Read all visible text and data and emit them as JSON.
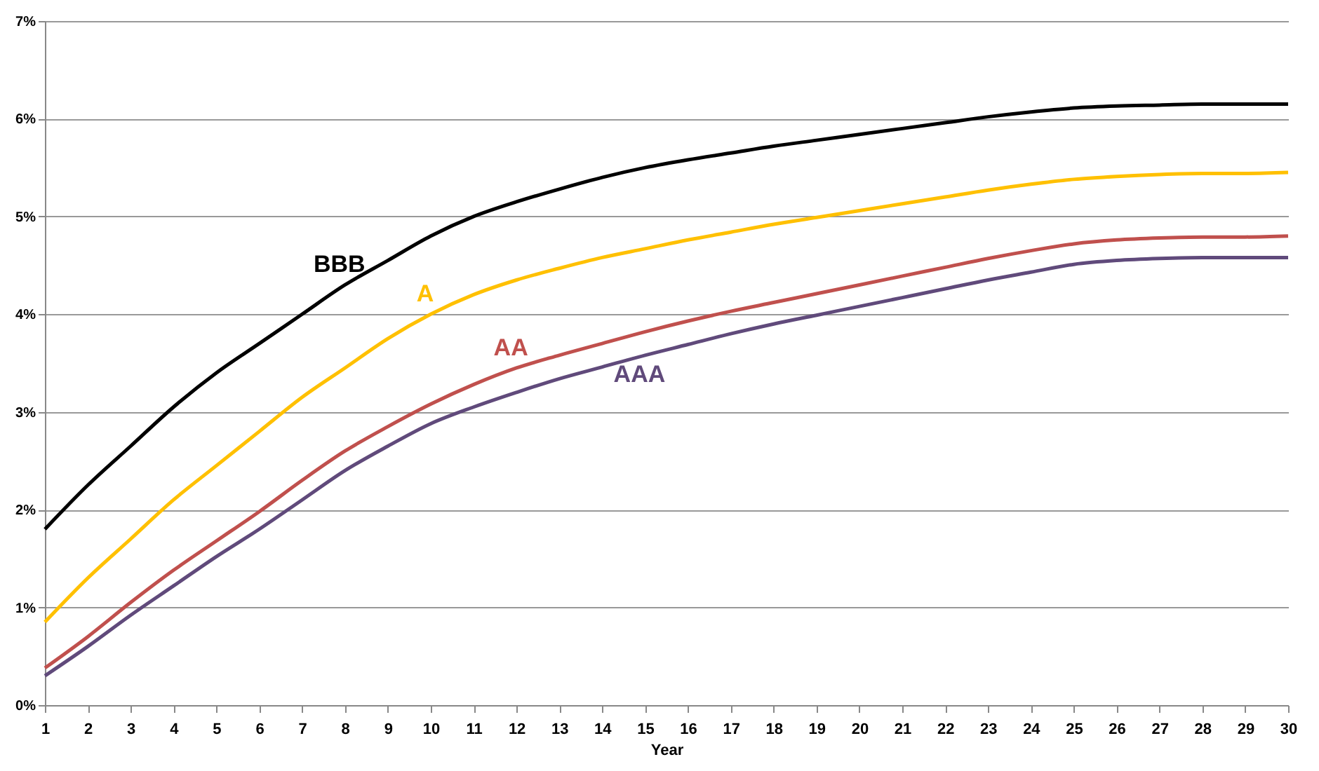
{
  "chart_data": {
    "type": "line",
    "xlabel": "Year",
    "x": [
      1,
      2,
      3,
      4,
      5,
      6,
      7,
      8,
      9,
      10,
      11,
      12,
      13,
      14,
      15,
      16,
      17,
      18,
      19,
      20,
      21,
      22,
      23,
      24,
      25,
      26,
      27,
      28,
      29,
      30
    ],
    "xlim": [
      1,
      30
    ],
    "xticks": [
      1,
      2,
      3,
      4,
      5,
      6,
      7,
      8,
      9,
      10,
      11,
      12,
      13,
      14,
      15,
      16,
      17,
      18,
      19,
      20,
      21,
      22,
      23,
      24,
      25,
      26,
      27,
      28,
      29,
      30
    ],
    "ylim": [
      0,
      7
    ],
    "yticks": [
      {
        "value": 0,
        "label": "0%"
      },
      {
        "value": 1,
        "label": "1%"
      },
      {
        "value": 2,
        "label": "2%"
      },
      {
        "value": 3,
        "label": "3%"
      },
      {
        "value": 4,
        "label": "4%"
      },
      {
        "value": 5,
        "label": "5%"
      },
      {
        "value": 6,
        "label": "6%"
      },
      {
        "value": 7,
        "label": "7%"
      }
    ],
    "grid": "y",
    "legend": false,
    "marker": "none",
    "line_style": "solid",
    "series": [
      {
        "name": "BBB",
        "color": "#000000",
        "values": [
          1.8,
          2.25,
          2.65,
          3.05,
          3.4,
          3.7,
          4.0,
          4.3,
          4.55,
          4.8,
          5.0,
          5.15,
          5.28,
          5.4,
          5.5,
          5.58,
          5.65,
          5.72,
          5.78,
          5.84,
          5.9,
          5.96,
          6.02,
          6.07,
          6.11,
          6.13,
          6.14,
          6.15,
          6.15,
          6.15
        ]
      },
      {
        "name": "A",
        "color": "#ffc000",
        "values": [
          0.85,
          1.3,
          1.7,
          2.1,
          2.45,
          2.8,
          3.15,
          3.45,
          3.75,
          4.0,
          4.2,
          4.35,
          4.47,
          4.58,
          4.67,
          4.76,
          4.84,
          4.92,
          4.99,
          5.06,
          5.13,
          5.2,
          5.27,
          5.33,
          5.38,
          5.41,
          5.43,
          5.44,
          5.44,
          5.45
        ]
      },
      {
        "name": "AA",
        "color": "#c0504d",
        "values": [
          0.38,
          0.7,
          1.05,
          1.38,
          1.68,
          1.98,
          2.3,
          2.6,
          2.85,
          3.08,
          3.28,
          3.45,
          3.58,
          3.7,
          3.82,
          3.93,
          4.03,
          4.12,
          4.21,
          4.3,
          4.39,
          4.48,
          4.57,
          4.65,
          4.72,
          4.76,
          4.78,
          4.79,
          4.79,
          4.8
        ]
      },
      {
        "name": "AAA",
        "color": "#604a7b",
        "values": [
          0.3,
          0.6,
          0.92,
          1.22,
          1.52,
          1.8,
          2.1,
          2.4,
          2.65,
          2.88,
          3.05,
          3.2,
          3.34,
          3.46,
          3.58,
          3.69,
          3.8,
          3.9,
          3.99,
          4.08,
          4.17,
          4.26,
          4.35,
          4.43,
          4.51,
          4.55,
          4.57,
          4.58,
          4.58,
          4.58
        ]
      }
    ]
  }
}
